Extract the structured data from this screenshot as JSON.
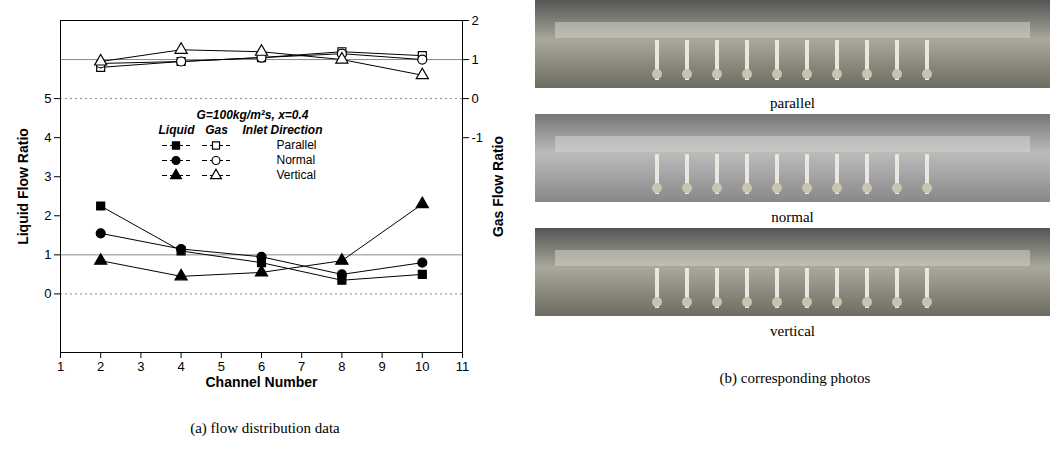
{
  "chart_data": {
    "type": "line",
    "x": [
      2,
      4,
      6,
      8,
      10
    ],
    "xlim": [
      1,
      11
    ],
    "xticks": [
      1,
      2,
      3,
      4,
      5,
      6,
      7,
      8,
      9,
      10,
      11
    ],
    "xlabel": "Channel Number",
    "ylabel": "Liquid Flow Ratio",
    "ylim": [
      -1.5,
      7
    ],
    "yticks": [
      0,
      1,
      2,
      3,
      4,
      5
    ],
    "y2label": "Gas Flow Ratio",
    "y2lim": [
      -6.5,
      2
    ],
    "y2ticks": [
      -1,
      0,
      1,
      2
    ],
    "reference_lines": {
      "solid": 1,
      "dotted": 0
    },
    "annotation": "G=100kg/m²s, x=0.4",
    "legend_header": [
      "Liquid",
      "Gas",
      "Inlet Direction"
    ],
    "legend": "center left",
    "series": [
      {
        "name": "Parallel",
        "axis": "y",
        "marker": "square",
        "color": "#000000",
        "values": [
          2.25,
          1.1,
          0.8,
          0.35,
          0.5
        ]
      },
      {
        "name": "Normal",
        "axis": "y",
        "marker": "circle",
        "color": "#000000",
        "values": [
          1.55,
          1.15,
          0.95,
          0.5,
          0.8
        ]
      },
      {
        "name": "Vertical",
        "axis": "y",
        "marker": "triangle",
        "color": "#000000",
        "values": [
          0.85,
          0.45,
          0.55,
          0.85,
          2.3
        ]
      },
      {
        "name": "Parallel",
        "axis": "y2",
        "marker": "open square",
        "color": "#000000",
        "values": [
          0.8,
          0.95,
          1.05,
          1.2,
          1.1
        ]
      },
      {
        "name": "Normal",
        "axis": "y2",
        "marker": "open circle",
        "color": "#000000",
        "values": [
          0.9,
          0.95,
          1.05,
          1.15,
          1.0
        ]
      },
      {
        "name": "Vertical",
        "axis": "y2",
        "marker": "open triangle",
        "color": "#000000",
        "values": [
          0.95,
          1.25,
          1.2,
          1.0,
          0.6
        ]
      }
    ]
  },
  "caption": "(a) flow distribution data",
  "photos": {
    "caption": "(b) corresponding photos",
    "labels": [
      "parallel",
      "normal",
      "vertical"
    ]
  }
}
